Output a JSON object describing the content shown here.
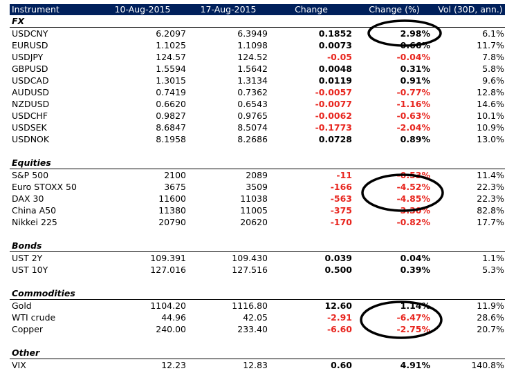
{
  "table": {
    "headers": [
      "Instrument",
      "10-Aug-2015",
      "17-Aug-2015",
      "Change",
      "Change (%)",
      "Vol (30D, ann.)"
    ],
    "sections": [
      {
        "title": "FX",
        "rows": [
          {
            "instrument": "USDCNY",
            "d1": "6.2097",
            "d2": "6.3949",
            "change": "0.1852",
            "pct": "2.98%",
            "vol": "6.1%"
          },
          {
            "instrument": "EURUSD",
            "d1": "1.1025",
            "d2": "1.1098",
            "change": "0.0073",
            "pct": "0.66%",
            "vol": "11.7%"
          },
          {
            "instrument": "USDJPY",
            "d1": "124.57",
            "d2": "124.52",
            "change": "-0.05",
            "pct": "-0.04%",
            "vol": "7.8%"
          },
          {
            "instrument": "GBPUSD",
            "d1": "1.5594",
            "d2": "1.5642",
            "change": "0.0048",
            "pct": "0.31%",
            "vol": "5.8%"
          },
          {
            "instrument": "USDCAD",
            "d1": "1.3015",
            "d2": "1.3134",
            "change": "0.0119",
            "pct": "0.91%",
            "vol": "9.6%"
          },
          {
            "instrument": "AUDUSD",
            "d1": "0.7419",
            "d2": "0.7362",
            "change": "-0.0057",
            "pct": "-0.77%",
            "vol": "12.8%"
          },
          {
            "instrument": "NZDUSD",
            "d1": "0.6620",
            "d2": "0.6543",
            "change": "-0.0077",
            "pct": "-1.16%",
            "vol": "14.6%"
          },
          {
            "instrument": "USDCHF",
            "d1": "0.9827",
            "d2": "0.9765",
            "change": "-0.0062",
            "pct": "-0.63%",
            "vol": "10.1%"
          },
          {
            "instrument": "USDSEK",
            "d1": "8.6847",
            "d2": "8.5074",
            "change": "-0.1773",
            "pct": "-2.04%",
            "vol": "10.9%"
          },
          {
            "instrument": "USDNOK",
            "d1": "8.1958",
            "d2": "8.2686",
            "change": "0.0728",
            "pct": "0.89%",
            "vol": "13.0%"
          }
        ]
      },
      {
        "title": "Equities",
        "rows": [
          {
            "instrument": "S&P 500",
            "d1": "2100",
            "d2": "2089",
            "change": "-11",
            "pct": "-0.53%",
            "vol": "11.4%"
          },
          {
            "instrument": "Euro STOXX 50",
            "d1": "3675",
            "d2": "3509",
            "change": "-166",
            "pct": "-4.52%",
            "vol": "22.3%"
          },
          {
            "instrument": "DAX 30",
            "d1": "11600",
            "d2": "11038",
            "change": "-563",
            "pct": "-4.85%",
            "vol": "22.3%"
          },
          {
            "instrument": "China A50",
            "d1": "11380",
            "d2": "11005",
            "change": "-375",
            "pct": "-3.30%",
            "vol": "82.8%"
          },
          {
            "instrument": "Nikkei 225",
            "d1": "20790",
            "d2": "20620",
            "change": "-170",
            "pct": "-0.82%",
            "vol": "17.7%"
          }
        ]
      },
      {
        "title": "Bonds",
        "rows": [
          {
            "instrument": "UST 2Y",
            "d1": "109.391",
            "d2": "109.430",
            "change": "0.039",
            "pct": "0.04%",
            "vol": "1.1%"
          },
          {
            "instrument": "UST 10Y",
            "d1": "127.016",
            "d2": "127.516",
            "change": "0.500",
            "pct": "0.39%",
            "vol": "5.3%"
          }
        ]
      },
      {
        "title": "Commodities",
        "rows": [
          {
            "instrument": "Gold",
            "d1": "1104.20",
            "d2": "1116.80",
            "change": "12.60",
            "pct": "1.14%",
            "vol": "11.9%"
          },
          {
            "instrument": "WTI crude",
            "d1": "44.96",
            "d2": "42.05",
            "change": "-2.91",
            "pct": "-6.47%",
            "vol": "28.6%"
          },
          {
            "instrument": "Copper",
            "d1": "240.00",
            "d2": "233.40",
            "change": "-6.60",
            "pct": "-2.75%",
            "vol": "20.7%"
          }
        ]
      },
      {
        "title": "Other",
        "rows": [
          {
            "instrument": "VIX",
            "d1": "12.23",
            "d2": "12.83",
            "change": "0.60",
            "pct": "4.91%",
            "vol": "140.8%"
          }
        ]
      }
    ]
  },
  "colors": {
    "header_bg": "#00205b",
    "header_text": "#ffffff",
    "negative": "#e8261f",
    "annotation": "#000000"
  }
}
